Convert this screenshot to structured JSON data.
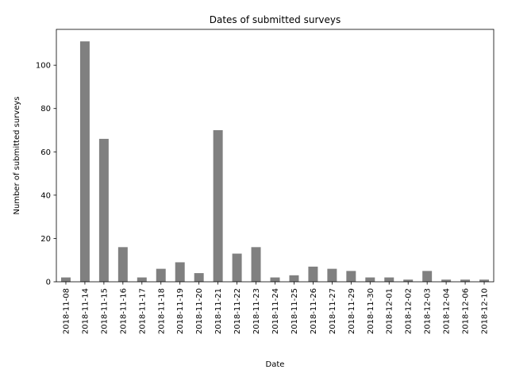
{
  "chart_data": {
    "type": "bar",
    "title": "Dates of submitted surveys",
    "xlabel": "Date",
    "ylabel": "Number of submitted surveys",
    "categories": [
      "2018-11-08",
      "2018-11-14",
      "2018-11-15",
      "2018-11-16",
      "2018-11-17",
      "2018-11-18",
      "2018-11-19",
      "2018-11-20",
      "2018-11-21",
      "2018-11-22",
      "2018-11-23",
      "2018-11-24",
      "2018-11-25",
      "2018-11-26",
      "2018-11-27",
      "2018-11-29",
      "2018-11-30",
      "2018-12-01",
      "2018-12-02",
      "2018-12-03",
      "2018-12-04",
      "2018-12-06",
      "2018-12-10"
    ],
    "values": [
      2,
      111,
      66,
      16,
      2,
      6,
      9,
      4,
      70,
      13,
      16,
      2,
      3,
      7,
      6,
      5,
      2,
      2,
      1,
      5,
      1,
      1,
      1
    ],
    "ylim": [
      0,
      116.55
    ],
    "yticks": [
      0,
      20,
      40,
      60,
      80,
      100
    ],
    "bar_color": "#808080",
    "grid": false,
    "legend": false
  }
}
